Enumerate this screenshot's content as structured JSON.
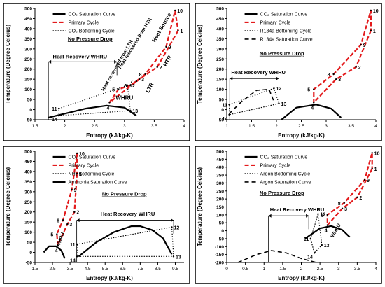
{
  "chart_data": [
    {
      "type": "line",
      "panel": "top-left",
      "xlabel": "Entropy (kJ/kg-K)",
      "ylabel": "Temperature (Degree Celcius)",
      "xlim": [
        1.5,
        4
      ],
      "ylim": [
        -50,
        500
      ],
      "xticks": [
        1.5,
        2,
        2.5,
        3,
        3.5,
        4
      ],
      "xtick_labels": [
        "1.5",
        "2",
        "2.5",
        "3",
        "3.5",
        "4"
      ],
      "yticks": [
        -50,
        0,
        50,
        100,
        150,
        200,
        250,
        300,
        350,
        400,
        450,
        500
      ],
      "legend": [
        "CO₂ Saturation Curve",
        "Primary Cycle",
        "CO₂ Bottoming Cycle"
      ],
      "note": "No Pressure Drop",
      "annotations": [
        "Heat Recovery WHRU",
        "Heat recovered from LTR",
        "Heat recovered from HTR",
        "Heat Source",
        "HTR",
        "LTR",
        "WHRU"
      ],
      "series": [
        {
          "name": "CO₂ Saturation Curve",
          "style": "solid",
          "x": [
            1.72,
            2.0,
            2.35,
            2.7,
            3.0,
            3.2
          ],
          "y": [
            -40,
            -20,
            5,
            20,
            10,
            -30
          ]
        },
        {
          "name": "Primary Cycle",
          "style": "dashed",
          "labels": [
            "1",
            "2",
            "3",
            "4",
            "5",
            "6",
            "7",
            "8",
            "9",
            "10"
          ],
          "x": [
            3.9,
            3.55,
            3.25,
            2.75,
            2.9,
            3.1,
            3.2,
            3.35,
            3.7,
            3.85
          ],
          "y": [
            390,
            210,
            150,
            35,
            100,
            120,
            140,
            175,
            310,
            490
          ]
        },
        {
          "name": "CO₂ Bottoming Cycle",
          "style": "dotted",
          "labels": [
            "11",
            "12",
            "13",
            "14"
          ],
          "x": [
            1.9,
            3.05,
            3.1,
            1.9
          ],
          "y": [
            5,
            120,
            -5,
            -30
          ]
        }
      ]
    },
    {
      "type": "line",
      "panel": "top-right",
      "xlabel": "Entropy (kJ/kg-K)",
      "ylabel": "Temperature (Degree Celcius)",
      "xlim": [
        1,
        4
      ],
      "ylim": [
        -50,
        500
      ],
      "xticks": [
        1,
        1.5,
        2,
        2.5,
        3,
        3.5,
        4
      ],
      "xtick_labels": [
        "1",
        "1.5",
        "2",
        "2.5",
        "3",
        "3.5",
        "4"
      ],
      "yticks": [
        -50,
        0,
        50,
        100,
        150,
        200,
        250,
        300,
        350,
        400,
        450,
        500
      ],
      "legend": [
        "CO₂ Saturation Curve",
        "Primary Cycle",
        "R134a Bottoming Cycle",
        "R134a Saturation Curve"
      ],
      "note": "No Pressure Drop",
      "annotations": [
        "Heat Recovery WHRU"
      ],
      "series": [
        {
          "name": "CO₂ Saturation Curve",
          "style": "solid",
          "x": [
            2.1,
            2.4,
            2.8,
            3.1,
            3.3
          ],
          "y": [
            -50,
            10,
            25,
            5,
            -40
          ]
        },
        {
          "name": "Primary Cycle",
          "style": "dashed",
          "labels": [
            "1",
            "2",
            "3",
            "4",
            "5",
            "8",
            "9",
            "10"
          ],
          "x": [
            3.9,
            3.6,
            3.2,
            2.75,
            2.75,
            3.15,
            3.7,
            3.9
          ],
          "y": [
            390,
            210,
            150,
            35,
            100,
            175,
            320,
            490
          ]
        },
        {
          "name": "R134a Bottoming Cycle",
          "style": "dotted",
          "labels": [
            "11",
            "12",
            "13",
            "14"
          ],
          "x": [
            1.05,
            1.95,
            2.05,
            1.05
          ],
          "y": [
            25,
            105,
            30,
            -25
          ]
        },
        {
          "name": "R134a Saturation Curve",
          "style": "dashed",
          "x": [
            1.05,
            1.3,
            1.6,
            1.85,
            1.95
          ],
          "y": [
            -20,
            40,
            95,
            100,
            40
          ]
        }
      ]
    },
    {
      "type": "line",
      "panel": "bottom-left",
      "xlabel": "Entropy (kJ/kg-K)",
      "ylabel": "Temperature (Degree Celcius)",
      "xlim": [
        1.5,
        10
      ],
      "ylim": [
        -50,
        500
      ],
      "xticks": [
        1.5,
        2.5,
        3.5,
        4.5,
        5.5,
        6.5,
        7.5,
        8.5,
        9.5
      ],
      "xtick_labels": [
        "1.5",
        "2.5",
        "3.5",
        "4.5",
        "5.5",
        "6.5",
        "7.5",
        "8.5",
        "9.5"
      ],
      "yticks": [
        -50,
        0,
        50,
        100,
        150,
        200,
        250,
        300,
        350,
        400,
        450,
        500
      ],
      "legend": [
        "CO₂ Saturation Curve",
        "Primary Cycle",
        "NH₃ Bottoming Cycle",
        "Ammonia Saturation Curve"
      ],
      "note": "No Pressure Drop",
      "annotations": [
        "Heat Recovery WHRU",
        "WHRU"
      ],
      "series": [
        {
          "name": "CO₂ Saturation Curve",
          "style": "solid",
          "x": [
            2.0,
            2.3,
            2.7,
            3.0,
            3.2
          ],
          "y": [
            0,
            30,
            30,
            10,
            -30
          ]
        },
        {
          "name": "Primary Cycle",
          "style": "dashed",
          "labels": [
            "1",
            "2",
            "3",
            "4",
            "5",
            "8",
            "9",
            "10"
          ],
          "x": [
            3.9,
            3.75,
            3.35,
            2.8,
            2.75,
            3.1,
            3.6,
            3.9
          ],
          "y": [
            390,
            200,
            140,
            35,
            90,
            160,
            310,
            490
          ]
        },
        {
          "name": "NH₃ Bottoming Cycle",
          "style": "dotted",
          "labels": [
            "11",
            "12",
            "13",
            "14"
          ],
          "x": [
            3.9,
            9.3,
            9.4,
            3.9
          ],
          "y": [
            40,
            125,
            -20,
            -20
          ]
        },
        {
          "name": "Ammonia Saturation Curve",
          "style": "solid",
          "x": [
            4.0,
            5.0,
            6.0,
            7.0,
            7.5,
            8.2,
            8.8,
            9.3
          ],
          "y": [
            -20,
            50,
            100,
            130,
            130,
            110,
            70,
            -10
          ]
        }
      ]
    },
    {
      "type": "line",
      "panel": "bottom-right",
      "xlabel": "Entropy (kJ/kg-K)",
      "ylabel": "Temperature (Degree Celcius)",
      "xlim": [
        0,
        4
      ],
      "ylim": [
        -200,
        500
      ],
      "xticks": [
        0,
        0.5,
        1,
        1.5,
        2,
        2.5,
        3,
        3.5,
        4
      ],
      "xtick_labels": [
        "0",
        "0.5",
        "1",
        "1.5",
        "2",
        "2.5",
        "3",
        "3.5",
        "4"
      ],
      "yticks": [
        -200,
        -150,
        -100,
        -50,
        0,
        50,
        100,
        150,
        200,
        250,
        300,
        350,
        400,
        450,
        500
      ],
      "legend": [
        "CO₂ Saturation Curve",
        "Primary Cycle",
        "Argon Bottoming Cycle",
        "Argon Saturation Curve"
      ],
      "note": "No Pressure Drop",
      "annotations": [
        "Heat Recovery WHRU",
        "WHRU"
      ],
      "series": [
        {
          "name": "CO₂ Saturation Curve",
          "style": "solid",
          "x": [
            2.1,
            2.5,
            2.8,
            3.1,
            3.3
          ],
          "y": [
            -50,
            15,
            30,
            5,
            -40
          ]
        },
        {
          "name": "Primary Cycle",
          "style": "dashed",
          "labels": [
            "1",
            "2",
            "3",
            "4",
            "5",
            "8",
            "9",
            "10"
          ],
          "x": [
            3.9,
            3.5,
            3.1,
            2.7,
            2.7,
            3.15,
            3.7,
            3.9
          ],
          "y": [
            390,
            210,
            140,
            35,
            100,
            175,
            320,
            490
          ]
        },
        {
          "name": "Argon Bottoming Cycle",
          "style": "dotted",
          "labels": [
            "11",
            "12",
            "13",
            "14"
          ],
          "x": [
            2.25,
            2.45,
            2.55,
            2.35
          ],
          "y": [
            -50,
            105,
            -90,
            -140
          ]
        },
        {
          "name": "Argon Saturation Curve",
          "style": "dashed",
          "x": [
            0.3,
            0.8,
            1.2,
            1.6,
            2.0,
            2.4
          ],
          "y": [
            -200,
            -150,
            -125,
            -140,
            -175,
            -200
          ]
        }
      ]
    }
  ]
}
